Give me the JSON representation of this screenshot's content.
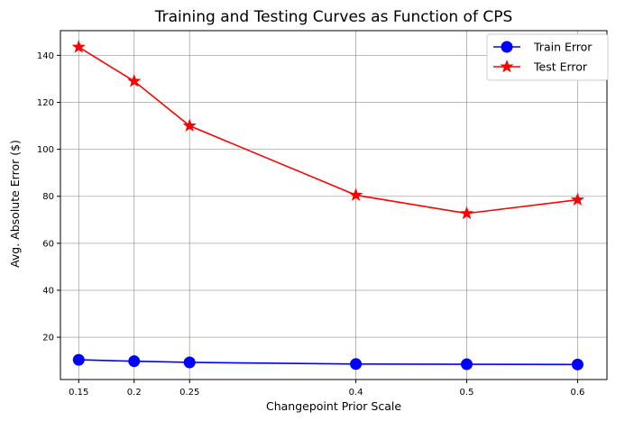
{
  "chart_data": {
    "type": "line",
    "title": "Training and Testing Curves as Function of CPS",
    "xlabel": "Changepoint Prior Scale",
    "ylabel": "Avg. Absolute Error ($)",
    "x": [
      0.15,
      0.2,
      0.25,
      0.4,
      0.5,
      0.6
    ],
    "x_tick_labels": [
      "0.15",
      "0.2",
      "0.25",
      "0.4",
      "0.5",
      "0.6"
    ],
    "xlim": [
      0.1335,
      0.6265
    ],
    "ylim": [
      2.0,
      150.5
    ],
    "y_ticks": [
      20,
      40,
      60,
      80,
      100,
      120,
      140
    ],
    "grid": true,
    "legend_position": "top-right",
    "series": [
      {
        "name": "Train Error",
        "values": [
          10.4,
          9.8,
          9.3,
          8.6,
          8.5,
          8.4
        ],
        "color": "#0000ff",
        "marker": "circle"
      },
      {
        "name": "Test Error",
        "values": [
          143.5,
          129.0,
          110.0,
          80.5,
          72.7,
          78.5
        ],
        "color": "#ff0000",
        "marker": "star"
      }
    ]
  }
}
